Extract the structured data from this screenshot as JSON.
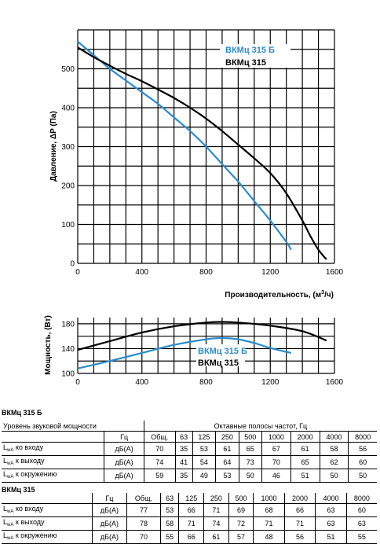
{
  "chart_data": [
    {
      "type": "line",
      "ylabel": "Давление, ΔP (Па)",
      "xlabel": "Производительность, (м³/ч)",
      "xlim": [
        0,
        1600
      ],
      "ylim": [
        0,
        600
      ],
      "xticks": [
        "0",
        "400",
        "800",
        "1200",
        "1600"
      ],
      "yticks": [
        "0",
        "100",
        "200",
        "300",
        "400",
        "500"
      ],
      "grid": true,
      "legend_position": "top-right",
      "series": [
        {
          "name": "ВКМц 315 Б",
          "color": "#2a8ccf",
          "x": [
            0,
            100,
            200,
            300,
            400,
            500,
            600,
            700,
            800,
            900,
            1000,
            1100,
            1200,
            1300,
            1330
          ],
          "y": [
            570,
            535,
            500,
            470,
            440,
            410,
            375,
            340,
            300,
            255,
            210,
            160,
            110,
            55,
            35
          ]
        },
        {
          "name": "ВКМц 315",
          "color": "#000000",
          "x": [
            0,
            100,
            200,
            300,
            400,
            500,
            600,
            700,
            800,
            900,
            1000,
            1100,
            1200,
            1300,
            1400,
            1450,
            1500,
            1550
          ],
          "y": [
            555,
            530,
            508,
            487,
            468,
            447,
            425,
            400,
            372,
            340,
            305,
            270,
            232,
            180,
            110,
            70,
            35,
            10
          ]
        }
      ]
    },
    {
      "type": "line",
      "ylabel": "Мощность, (Вт)",
      "xlim": [
        0,
        1600
      ],
      "ylim": [
        100,
        190
      ],
      "xticks": [
        "0",
        "400",
        "800",
        "1200",
        "1600"
      ],
      "yticks": [
        "100",
        "140",
        "180"
      ],
      "grid": true,
      "legend_position": "center-right",
      "series": [
        {
          "name": "ВКМц 315 Б",
          "color": "#2a8ccf",
          "x": [
            0,
            200,
            400,
            600,
            800,
            900,
            1000,
            1100,
            1200,
            1330
          ],
          "y": [
            108,
            120,
            133,
            146,
            155,
            157,
            155,
            149,
            141,
            133
          ]
        },
        {
          "name": "ВКМц 315",
          "color": "#000000",
          "x": [
            0,
            200,
            400,
            600,
            800,
            900,
            1000,
            1200,
            1400,
            1550
          ],
          "y": [
            138,
            152,
            166,
            176,
            182,
            183,
            182,
            177,
            168,
            153
          ]
        }
      ]
    }
  ],
  "tables": [
    {
      "title": "ВКМц 315 Б",
      "header_label": "Уровень звуковой мощности",
      "bands_caption": "Октавные полосы частот, Гц",
      "freq_unit": "Гц",
      "columns": [
        "Общ.",
        "63",
        "125",
        "250",
        "500",
        "1000",
        "2000",
        "4000",
        "8000"
      ],
      "rows": [
        {
          "label_main": "L",
          "label_sub": "wA",
          "label_rest": " ко входу",
          "unit": "дБ(А)",
          "values": [
            "70",
            "35",
            "53",
            "61",
            "65",
            "67",
            "61",
            "58",
            "56"
          ]
        },
        {
          "label_main": "L",
          "label_sub": "wA",
          "label_rest": " к выходу",
          "unit": "дБ(А)",
          "values": [
            "74",
            "41",
            "54",
            "64",
            "73",
            "70",
            "65",
            "62",
            "60"
          ]
        },
        {
          "label_main": "L",
          "label_sub": "wA",
          "label_rest": " к окружению",
          "unit": "дБ(А)",
          "values": [
            "59",
            "35",
            "49",
            "53",
            "50",
            "46",
            "51",
            "50",
            "50"
          ]
        }
      ]
    },
    {
      "title": "ВКМц 315",
      "freq_unit": "Гц",
      "columns": [
        "Общ.",
        "63",
        "125",
        "250",
        "500",
        "1000",
        "2000",
        "4000",
        "8000"
      ],
      "rows": [
        {
          "label_main": "L",
          "label_sub": "wA",
          "label_rest": " ко входу",
          "unit": "дБ(А)",
          "values": [
            "77",
            "53",
            "66",
            "71",
            "69",
            "68",
            "66",
            "63",
            "60"
          ]
        },
        {
          "label_main": "L",
          "label_sub": "wA",
          "label_rest": " к выходу",
          "unit": "дБ(А)",
          "values": [
            "78",
            "58",
            "71",
            "74",
            "72",
            "71",
            "71",
            "63",
            "63"
          ]
        },
        {
          "label_main": "L",
          "label_sub": "wA",
          "label_rest": " к окружению",
          "unit": "дБ(А)",
          "values": [
            "70",
            "55",
            "66",
            "61",
            "57",
            "48",
            "56",
            "51",
            "55"
          ]
        }
      ]
    }
  ]
}
